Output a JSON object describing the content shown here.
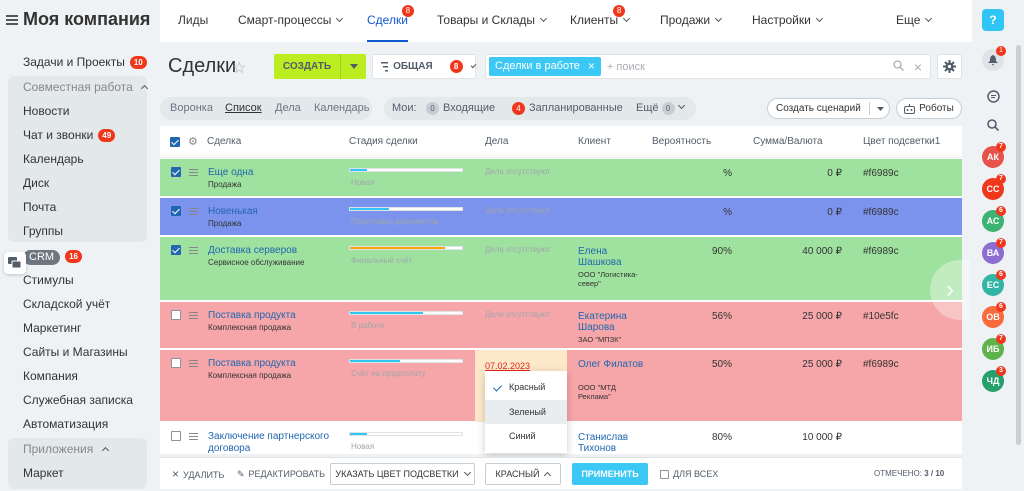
{
  "company": {
    "name": "Моя компания"
  },
  "sidebar": {
    "items": [
      {
        "label": "Задачи и Проекты",
        "badge": "10"
      },
      {
        "label": "Совместная работа"
      },
      {
        "label": "Новости"
      },
      {
        "label": "Чат и звонки",
        "badge": "49"
      },
      {
        "label": "Календарь"
      },
      {
        "label": "Диск"
      },
      {
        "label": "Почта"
      },
      {
        "label": "Группы"
      },
      {
        "label": "CRM",
        "badge": "16"
      },
      {
        "label": "Стимулы"
      },
      {
        "label": "Складской учёт"
      },
      {
        "label": "Маркетинг"
      },
      {
        "label": "Сайты и Магазины"
      },
      {
        "label": "Компания"
      },
      {
        "label": "Служебная записка"
      },
      {
        "label": "Автоматизация"
      },
      {
        "label": "Приложения"
      },
      {
        "label": "Маркет"
      }
    ]
  },
  "topnav": {
    "items": [
      {
        "label": "Лиды"
      },
      {
        "label": "Смарт-процессы"
      },
      {
        "label": "Сделки",
        "badge": "8"
      },
      {
        "label": "Товары и Склады"
      },
      {
        "label": "Клиенты",
        "badge": "8"
      },
      {
        "label": "Продажи"
      },
      {
        "label": "Настройки"
      },
      {
        "label": "Еще"
      }
    ]
  },
  "page": {
    "title": "Сделки"
  },
  "toolbar": {
    "create_label": "создать",
    "filter_label": "ОБЩАЯ",
    "filter_count": "8",
    "search_chip": "Сделки в работе",
    "search_placeholder": "+ поиск"
  },
  "views": {
    "items": [
      "Воронка",
      "Список",
      "Дела",
      "Календарь"
    ]
  },
  "counters": {
    "label": "Мои:",
    "incoming_count": "0",
    "incoming_label": "Входящие",
    "planned_count": "4",
    "planned_label": "Запланированные",
    "more_label": "Ещё",
    "more_count": "0"
  },
  "buttons": {
    "scenario": "Создать сценарий",
    "robots": "Роботы"
  },
  "table": {
    "headers": [
      "Сделка",
      "Стадия сделки",
      "Дела",
      "Клиент",
      "Вероятность",
      "Сумма/Валюта",
      "Цвет подсветки1"
    ],
    "rows": [
      {
        "title": "Еще одна",
        "type": "Продажа",
        "stage": "Новая",
        "stage_progress": 0.15,
        "stage_color": "#2fc6f6",
        "activities": "Дела отсутствуют",
        "client": "",
        "client_info": "",
        "probability": "%",
        "sum": "0 ₽",
        "color": "#f6989c",
        "checked": true,
        "bg": "#9fe29f"
      },
      {
        "title": "Новенькая",
        "type": "Продажа",
        "stage": "Подготовка документов",
        "stage_progress": 0.35,
        "stage_color": "#2fc6f6",
        "activities": "Дела отсутствуют",
        "client": "",
        "client_info": "",
        "probability": "%",
        "sum": "0 ₽",
        "color": "#f6989c",
        "checked": true,
        "bg": "#7b93ec"
      },
      {
        "title": "Доставка серверов",
        "type": "Сервисное обслуживание",
        "stage": "Финальный счёт",
        "stage_progress": 0.85,
        "stage_color": "#f7a700",
        "activities": "Дела отсутствуют",
        "client": "Елена Шашкова",
        "client_info": "ООО \"Логистика-север\"",
        "probability": "90%",
        "sum": "40 000 ₽",
        "color": "#f6989c",
        "checked": true,
        "bg": "#9fe29f"
      },
      {
        "title": "Поставка продукта",
        "type": "Комплексная продажа",
        "stage": "В работе",
        "stage_progress": 0.65,
        "stage_color": "#2fc6f6",
        "activities": "Дела отсутствуют",
        "client": "Екатерина Шарова",
        "client_info": "ЗАО \"МПЗК\"",
        "probability": "56%",
        "sum": "25 000 ₽",
        "color": "#10e5fc",
        "checked": false,
        "bg": "#f6a5a8"
      },
      {
        "title": "Поставка продукта",
        "type": "Комплексная продажа",
        "stage": "Счёт на предоплату",
        "stage_progress": 0.45,
        "stage_color": "#2fc6f6",
        "activities": "07.02.2023",
        "client": "Олег Филатов",
        "client_info": "ООО \"МТД Реклама\"",
        "probability": "50%",
        "sum": "25 000 ₽",
        "color": "#f6989c",
        "checked": false,
        "bg": "#f6a5a8"
      },
      {
        "title": "Заключение партнерского договора",
        "type": "",
        "stage": "Новая",
        "stage_progress": 0.15,
        "stage_color": "#2fc6f6",
        "activities": "",
        "client": "Станислав Тихонов",
        "client_info": "",
        "probability": "80%",
        "sum": "10 000 ₽",
        "color": "",
        "checked": false,
        "bg": "#ffffff"
      }
    ]
  },
  "dropdown": {
    "options": [
      "Красный",
      "Зеленый",
      "Синий"
    ],
    "selected": "Красный",
    "highlighted": "Зеленый"
  },
  "bottom": {
    "delete": "удалить",
    "edit": "редактировать",
    "color_field": "указать цвет подсветки",
    "color_value": "красный",
    "apply": "применить",
    "for_all": "для всех",
    "selected_label": "отмечено:",
    "selected_value": "3 / 10"
  },
  "right_panel": {
    "avatars": [
      {
        "initials": "АК",
        "color": "#e5534b",
        "badge": "7"
      },
      {
        "initials": "СС",
        "color": "#f0371b",
        "badge": "7"
      },
      {
        "initials": "АС",
        "color": "#3cb371",
        "badge": "6"
      },
      {
        "initials": "ВА",
        "color": "#8e6dd1",
        "badge": "7"
      },
      {
        "initials": "ЕС",
        "color": "#33b5a5",
        "badge": "6"
      },
      {
        "initials": "ОВ",
        "color": "#f76a3a",
        "badge": "6"
      },
      {
        "initials": "ИБ",
        "color": "#5fb34b",
        "badge": "7"
      },
      {
        "initials": "ЧД",
        "color": "#25a06b",
        "badge": "3"
      }
    ],
    "bell_badge": "1"
  }
}
